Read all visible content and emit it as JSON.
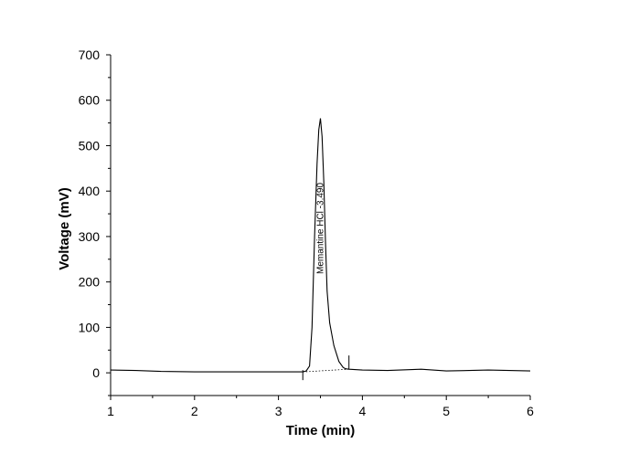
{
  "chart_data": {
    "type": "line",
    "xlabel": "Time (min)",
    "ylabel": "Voltage (mV)",
    "xlim": [
      1,
      6
    ],
    "ylim": [
      -50,
      700
    ],
    "x_ticks": [
      1,
      2,
      3,
      4,
      5,
      6
    ],
    "y_ticks": [
      0,
      100,
      200,
      300,
      400,
      500,
      600,
      700
    ],
    "grid": false,
    "legend": "none",
    "line_color": "#000000",
    "series": [
      {
        "x": [
          1.0,
          1.3,
          1.6,
          2.0,
          2.4,
          2.8,
          3.1,
          3.28,
          3.33,
          3.37,
          3.4,
          3.43,
          3.46,
          3.48,
          3.5,
          3.52,
          3.54,
          3.56,
          3.58,
          3.61,
          3.66,
          3.72,
          3.77,
          3.8,
          3.84,
          4.0,
          4.3,
          4.7,
          5.0,
          5.5,
          6.0
        ],
        "values": [
          6,
          5,
          3,
          2,
          2,
          2,
          2,
          2,
          4,
          15,
          100,
          300,
          460,
          535,
          560,
          520,
          420,
          290,
          180,
          110,
          60,
          25,
          12,
          9,
          8,
          6,
          5,
          8,
          4,
          6,
          4
        ]
      }
    ],
    "annotations": [
      {
        "text": "Memantine HCl -3.490",
        "x": 3.49,
        "rotation": -90
      }
    ],
    "integration_markers": [
      {
        "x": 3.29,
        "y": 2
      },
      {
        "x": 3.84,
        "y": 8
      }
    ]
  }
}
